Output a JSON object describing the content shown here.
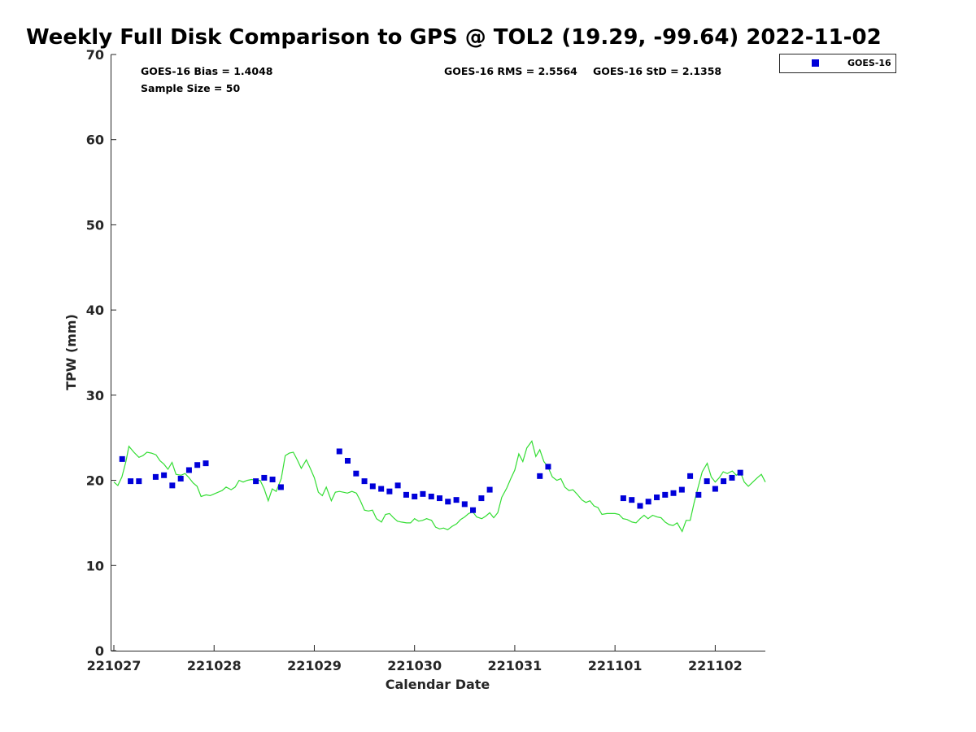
{
  "chart_data": {
    "type": "scatter",
    "title": "Weekly Full Disk Comparison to GPS @ TOL2 (19.29, -99.64) 2022-11-02",
    "xlabel": "Calendar Date",
    "ylabel": "TPW (mm)",
    "xlim": [
      0,
      6.5
    ],
    "ylim": [
      0,
      70
    ],
    "x_tick_labels": [
      {
        "x": 0,
        "label": "221027"
      },
      {
        "x": 1,
        "label": "221028"
      },
      {
        "x": 2,
        "label": "221029"
      },
      {
        "x": 3,
        "label": "221030"
      },
      {
        "x": 4,
        "label": "221031"
      },
      {
        "x": 5,
        "label": "221101"
      },
      {
        "x": 6,
        "label": "221102"
      }
    ],
    "y_ticks": [
      0,
      10,
      20,
      30,
      40,
      50,
      60,
      70
    ],
    "grid": false,
    "legend_position": "top-right",
    "stats": {
      "bias": "GOES-16 Bias = 1.4048",
      "sample": "Sample Size = 50",
      "rms": "GOES-16 RMS = 2.5564",
      "std": "GOES-16 StD = 2.1358"
    },
    "series": [
      {
        "name": "GOES-16",
        "kind": "markers",
        "color": "#0000d9",
        "points": [
          [
            0.083,
            22.5
          ],
          [
            0.167,
            19.9
          ],
          [
            0.25,
            19.9
          ],
          [
            0.417,
            20.4
          ],
          [
            0.5,
            20.6
          ],
          [
            0.583,
            19.4
          ],
          [
            0.667,
            20.2
          ],
          [
            0.75,
            21.2
          ],
          [
            0.833,
            21.8
          ],
          [
            0.917,
            22.0
          ],
          [
            1.417,
            19.9
          ],
          [
            1.5,
            20.3
          ],
          [
            1.583,
            20.1
          ],
          [
            1.667,
            19.2
          ],
          [
            2.25,
            23.4
          ],
          [
            2.333,
            22.3
          ],
          [
            2.417,
            20.8
          ],
          [
            2.5,
            19.9
          ],
          [
            2.583,
            19.3
          ],
          [
            2.667,
            19.0
          ],
          [
            2.75,
            18.7
          ],
          [
            2.833,
            19.4
          ],
          [
            2.917,
            18.3
          ],
          [
            3.0,
            18.1
          ],
          [
            3.083,
            18.4
          ],
          [
            3.167,
            18.1
          ],
          [
            3.25,
            17.9
          ],
          [
            3.333,
            17.5
          ],
          [
            3.417,
            17.7
          ],
          [
            3.5,
            17.2
          ],
          [
            3.583,
            16.5
          ],
          [
            3.667,
            17.9
          ],
          [
            3.75,
            18.9
          ],
          [
            4.25,
            20.5
          ],
          [
            4.333,
            21.6
          ],
          [
            5.083,
            17.9
          ],
          [
            5.167,
            17.7
          ],
          [
            5.25,
            17.0
          ],
          [
            5.333,
            17.5
          ],
          [
            5.417,
            18.0
          ],
          [
            5.5,
            18.3
          ],
          [
            5.583,
            18.5
          ],
          [
            5.667,
            18.9
          ],
          [
            5.75,
            20.5
          ],
          [
            5.833,
            18.3
          ],
          [
            5.917,
            19.9
          ],
          [
            6.0,
            19.0
          ],
          [
            6.083,
            19.9
          ],
          [
            6.167,
            20.3
          ],
          [
            6.25,
            20.9
          ]
        ]
      },
      {
        "name": "",
        "kind": "line",
        "color": "#33dd33",
        "points": [
          [
            0.0,
            19.8
          ],
          [
            0.04,
            19.4
          ],
          [
            0.08,
            20.4
          ],
          [
            0.12,
            22.2
          ],
          [
            0.15,
            24.0
          ],
          [
            0.2,
            23.3
          ],
          [
            0.25,
            22.7
          ],
          [
            0.29,
            22.9
          ],
          [
            0.33,
            23.3
          ],
          [
            0.375,
            23.2
          ],
          [
            0.42,
            23.0
          ],
          [
            0.46,
            22.3
          ],
          [
            0.5,
            21.9
          ],
          [
            0.54,
            21.3
          ],
          [
            0.58,
            22.1
          ],
          [
            0.62,
            20.7
          ],
          [
            0.67,
            20.6
          ],
          [
            0.71,
            20.8
          ],
          [
            0.75,
            20.3
          ],
          [
            0.79,
            19.7
          ],
          [
            0.83,
            19.3
          ],
          [
            0.87,
            18.1
          ],
          [
            0.92,
            18.3
          ],
          [
            0.96,
            18.2
          ],
          [
            1.0,
            18.4
          ],
          [
            1.04,
            18.6
          ],
          [
            1.08,
            18.8
          ],
          [
            1.12,
            19.2
          ],
          [
            1.17,
            18.9
          ],
          [
            1.21,
            19.2
          ],
          [
            1.25,
            20.0
          ],
          [
            1.29,
            19.8
          ],
          [
            1.33,
            20.0
          ],
          [
            1.375,
            20.1
          ],
          [
            1.42,
            20.0
          ],
          [
            1.46,
            20.0
          ],
          [
            1.5,
            19.0
          ],
          [
            1.54,
            17.6
          ],
          [
            1.58,
            19.0
          ],
          [
            1.62,
            18.7
          ],
          [
            1.67,
            20.2
          ],
          [
            1.71,
            22.9
          ],
          [
            1.75,
            23.2
          ],
          [
            1.79,
            23.3
          ],
          [
            1.83,
            22.4
          ],
          [
            1.87,
            21.4
          ],
          [
            1.92,
            22.4
          ],
          [
            1.96,
            21.4
          ],
          [
            2.0,
            20.3
          ],
          [
            2.04,
            18.6
          ],
          [
            2.08,
            18.2
          ],
          [
            2.12,
            19.2
          ],
          [
            2.17,
            17.6
          ],
          [
            2.21,
            18.6
          ],
          [
            2.25,
            18.7
          ],
          [
            2.29,
            18.6
          ],
          [
            2.33,
            18.5
          ],
          [
            2.375,
            18.7
          ],
          [
            2.42,
            18.5
          ],
          [
            2.46,
            17.6
          ],
          [
            2.5,
            16.5
          ],
          [
            2.54,
            16.4
          ],
          [
            2.58,
            16.5
          ],
          [
            2.62,
            15.5
          ],
          [
            2.67,
            15.1
          ],
          [
            2.71,
            16.0
          ],
          [
            2.75,
            16.1
          ],
          [
            2.79,
            15.6
          ],
          [
            2.83,
            15.2
          ],
          [
            2.87,
            15.1
          ],
          [
            2.92,
            15.0
          ],
          [
            2.96,
            15.0
          ],
          [
            3.0,
            15.5
          ],
          [
            3.04,
            15.2
          ],
          [
            3.08,
            15.3
          ],
          [
            3.12,
            15.5
          ],
          [
            3.17,
            15.3
          ],
          [
            3.21,
            14.5
          ],
          [
            3.25,
            14.3
          ],
          [
            3.29,
            14.4
          ],
          [
            3.33,
            14.2
          ],
          [
            3.375,
            14.6
          ],
          [
            3.42,
            14.9
          ],
          [
            3.46,
            15.4
          ],
          [
            3.5,
            15.7
          ],
          [
            3.54,
            16.1
          ],
          [
            3.58,
            16.3
          ],
          [
            3.62,
            15.7
          ],
          [
            3.67,
            15.5
          ],
          [
            3.71,
            15.8
          ],
          [
            3.75,
            16.2
          ],
          [
            3.79,
            15.6
          ],
          [
            3.83,
            16.2
          ],
          [
            3.87,
            18.0
          ],
          [
            3.92,
            19.1
          ],
          [
            3.96,
            20.2
          ],
          [
            4.0,
            21.2
          ],
          [
            4.04,
            23.1
          ],
          [
            4.08,
            22.2
          ],
          [
            4.12,
            23.8
          ],
          [
            4.17,
            24.6
          ],
          [
            4.21,
            22.8
          ],
          [
            4.25,
            23.6
          ],
          [
            4.29,
            22.2
          ],
          [
            4.33,
            21.6
          ],
          [
            4.375,
            20.4
          ],
          [
            4.42,
            20.0
          ],
          [
            4.46,
            20.2
          ],
          [
            4.5,
            19.2
          ],
          [
            4.54,
            18.8
          ],
          [
            4.58,
            18.9
          ],
          [
            4.62,
            18.4
          ],
          [
            4.67,
            17.7
          ],
          [
            4.71,
            17.4
          ],
          [
            4.75,
            17.6
          ],
          [
            4.79,
            17.0
          ],
          [
            4.83,
            16.8
          ],
          [
            4.87,
            16.0
          ],
          [
            4.92,
            16.1
          ],
          [
            4.96,
            16.1
          ],
          [
            5.0,
            16.1
          ],
          [
            5.04,
            16.0
          ],
          [
            5.08,
            15.5
          ],
          [
            5.12,
            15.4
          ],
          [
            5.17,
            15.1
          ],
          [
            5.21,
            15.0
          ],
          [
            5.25,
            15.5
          ],
          [
            5.29,
            15.9
          ],
          [
            5.33,
            15.5
          ],
          [
            5.375,
            15.9
          ],
          [
            5.42,
            15.7
          ],
          [
            5.46,
            15.6
          ],
          [
            5.5,
            15.1
          ],
          [
            5.54,
            14.8
          ],
          [
            5.58,
            14.7
          ],
          [
            5.62,
            15.0
          ],
          [
            5.67,
            14.0
          ],
          [
            5.71,
            15.3
          ],
          [
            5.75,
            15.3
          ],
          [
            5.79,
            17.4
          ],
          [
            5.83,
            19.2
          ],
          [
            5.87,
            21.0
          ],
          [
            5.92,
            22.0
          ],
          [
            5.96,
            20.4
          ],
          [
            6.0,
            19.8
          ],
          [
            6.04,
            20.3
          ],
          [
            6.08,
            21.0
          ],
          [
            6.12,
            20.8
          ],
          [
            6.17,
            21.1
          ],
          [
            6.21,
            20.6
          ],
          [
            6.25,
            21.0
          ],
          [
            6.29,
            19.8
          ],
          [
            6.33,
            19.3
          ],
          [
            6.375,
            19.8
          ],
          [
            6.42,
            20.3
          ],
          [
            6.46,
            20.7
          ],
          [
            6.5,
            19.8
          ]
        ]
      }
    ]
  }
}
